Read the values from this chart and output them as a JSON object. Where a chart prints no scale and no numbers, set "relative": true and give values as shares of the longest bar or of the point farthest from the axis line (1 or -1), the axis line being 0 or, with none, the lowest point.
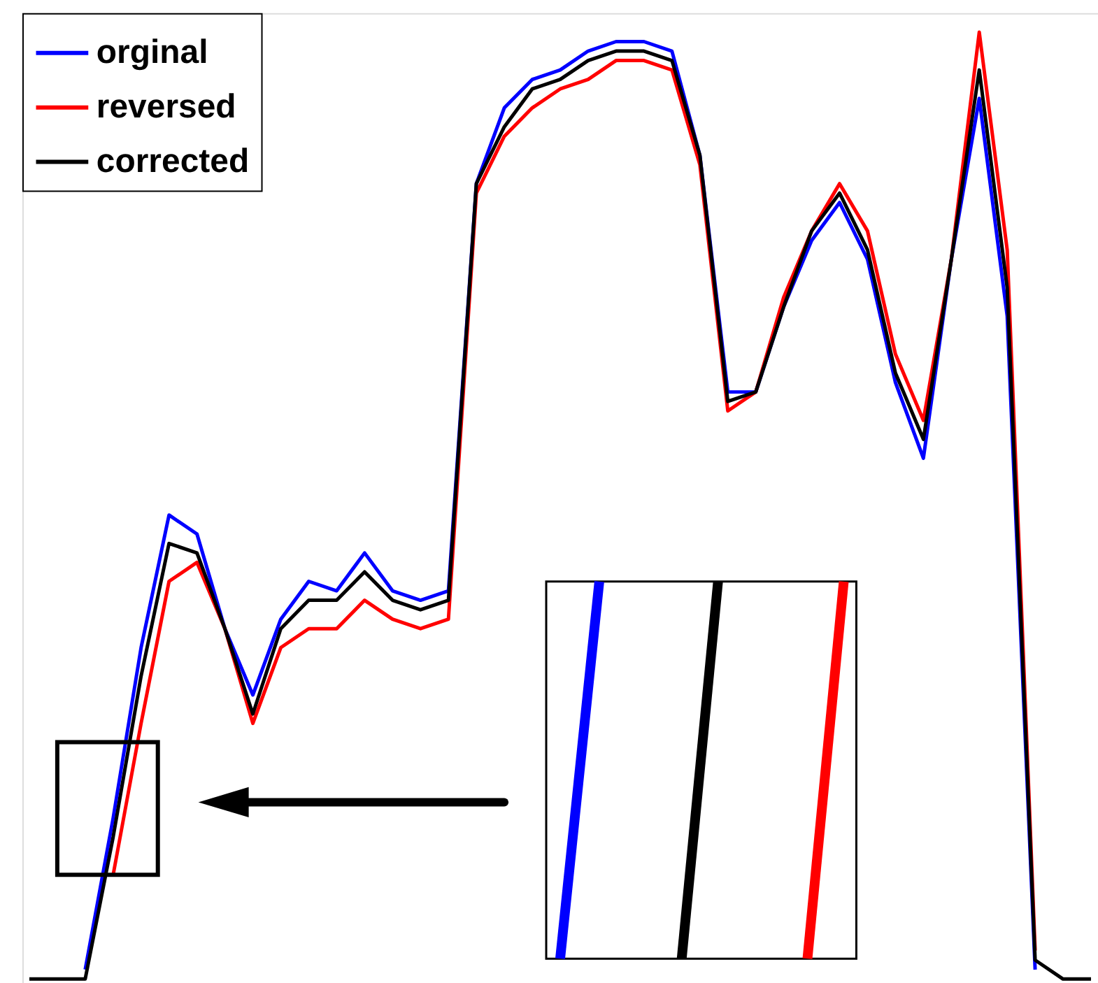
{
  "chart_data": {
    "type": "line",
    "relative": true,
    "legend": "top left",
    "categories": [
      null,
      null,
      null,
      null,
      null,
      null,
      null,
      null,
      null,
      null,
      null,
      null,
      null,
      null,
      null,
      null,
      null,
      null,
      null,
      null,
      null,
      null,
      null,
      null,
      null,
      null,
      null,
      null,
      null,
      null,
      null,
      null,
      null,
      null,
      null,
      null,
      null,
      null,
      null
    ],
    "series": [
      {
        "name": "orginal",
        "color": "#0000ff",
        "values": [
          null,
          null,
          0.01,
          0.17,
          0.35,
          0.49,
          0.47,
          0.37,
          0.3,
          0.38,
          0.42,
          0.41,
          0.45,
          0.41,
          0.4,
          0.41,
          0.84,
          0.92,
          0.95,
          0.96,
          0.98,
          0.99,
          0.99,
          0.98,
          0.87,
          0.62,
          0.62,
          0.71,
          0.78,
          0.82,
          0.76,
          0.63,
          0.55,
          0.76,
          0.93,
          0.7,
          0.01,
          null,
          null
        ]
      },
      {
        "name": "reversed",
        "color": "#ff0000",
        "values": [
          null,
          null,
          null,
          0.11,
          0.27,
          0.42,
          0.44,
          0.37,
          0.27,
          0.35,
          0.37,
          0.37,
          0.4,
          0.38,
          0.37,
          0.38,
          0.83,
          0.89,
          0.92,
          0.94,
          0.95,
          0.97,
          0.97,
          0.96,
          0.86,
          0.6,
          0.62,
          0.72,
          0.79,
          0.84,
          0.79,
          0.66,
          0.59,
          0.76,
          1.0,
          0.77,
          0.03,
          null,
          null
        ]
      },
      {
        "name": "corrected",
        "color": "#000000",
        "values": [
          0,
          0,
          0,
          0.15,
          0.32,
          0.46,
          0.45,
          0.37,
          0.28,
          0.37,
          0.4,
          0.4,
          0.43,
          0.4,
          0.39,
          0.4,
          0.84,
          0.9,
          0.94,
          0.95,
          0.97,
          0.98,
          0.98,
          0.97,
          0.87,
          0.61,
          0.62,
          0.71,
          0.79,
          0.83,
          0.77,
          0.64,
          0.57,
          0.76,
          0.96,
          0.73,
          0.02,
          0,
          0
        ]
      }
    ]
  }
}
